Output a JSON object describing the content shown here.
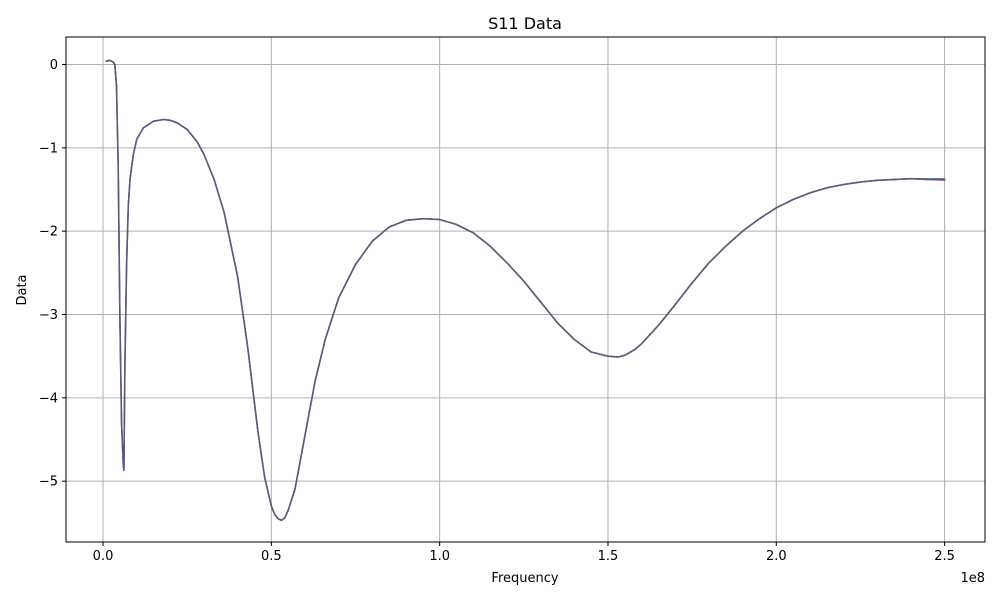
{
  "chart_data": {
    "type": "line",
    "title": "S11 Data",
    "xlabel": "Frequency",
    "ylabel": "Data",
    "x_offset_label": "1e8",
    "xlim": [
      -0.11,
      2.62
    ],
    "ylim": [
      -5.73,
      0.33
    ],
    "grid": true,
    "x_ticks": [
      0.0,
      0.5,
      1.0,
      1.5,
      2.0,
      2.5
    ],
    "x_tick_labels": [
      "0.0",
      "0.5",
      "1.0",
      "1.5",
      "2.0",
      "2.5"
    ],
    "y_ticks": [
      0,
      -1,
      -2,
      -3,
      -4,
      -5
    ],
    "y_tick_labels": [
      "0",
      "−1",
      "−2",
      "−3",
      "−4",
      "−5"
    ],
    "series": [
      {
        "color": "#c04050",
        "x": [
          0.01,
          0.02,
          0.025,
          0.03,
          0.035,
          0.04,
          0.045,
          0.05,
          0.055,
          0.06,
          0.062,
          0.065,
          0.07,
          0.075,
          0.08,
          0.09,
          0.1,
          0.12,
          0.15,
          0.18,
          0.2,
          0.22,
          0.25,
          0.28,
          0.3,
          0.33,
          0.36,
          0.4,
          0.43,
          0.46,
          0.48,
          0.5,
          0.51,
          0.52,
          0.53,
          0.54,
          0.55,
          0.57,
          0.6,
          0.63,
          0.66,
          0.7,
          0.75,
          0.8,
          0.85,
          0.9,
          0.95,
          1.0,
          1.05,
          1.1,
          1.15,
          1.2,
          1.25,
          1.3,
          1.35,
          1.4,
          1.45,
          1.5,
          1.53,
          1.55,
          1.58,
          1.6,
          1.65,
          1.7,
          1.75,
          1.8,
          1.85,
          1.9,
          1.95,
          2.0,
          2.05,
          2.1,
          2.15,
          2.2,
          2.25,
          2.3,
          2.35,
          2.4,
          2.45,
          2.5
        ],
        "y": [
          0.04,
          0.05,
          0.04,
          0.03,
          0.0,
          -0.25,
          -1.2,
          -3.0,
          -4.3,
          -4.8,
          -4.87,
          -3.6,
          -2.4,
          -1.7,
          -1.38,
          -1.08,
          -0.9,
          -0.76,
          -0.68,
          -0.66,
          -0.67,
          -0.7,
          -0.78,
          -0.93,
          -1.08,
          -1.38,
          -1.78,
          -2.55,
          -3.4,
          -4.4,
          -4.95,
          -5.3,
          -5.4,
          -5.45,
          -5.47,
          -5.44,
          -5.35,
          -5.1,
          -4.45,
          -3.8,
          -3.3,
          -2.8,
          -2.4,
          -2.12,
          -1.95,
          -1.87,
          -1.85,
          -1.86,
          -1.92,
          -2.02,
          -2.18,
          -2.38,
          -2.6,
          -2.85,
          -3.1,
          -3.3,
          -3.45,
          -3.5,
          -3.51,
          -3.49,
          -3.42,
          -3.35,
          -3.13,
          -2.88,
          -2.62,
          -2.38,
          -2.18,
          -2.0,
          -1.85,
          -1.72,
          -1.62,
          -1.54,
          -1.48,
          -1.44,
          -1.41,
          -1.39,
          -1.38,
          -1.37,
          -1.38,
          -1.39
        ]
      },
      {
        "color": "#4a6fb0",
        "x": [
          0.01,
          0.02,
          0.025,
          0.03,
          0.035,
          0.04,
          0.045,
          0.05,
          0.055,
          0.06,
          0.062,
          0.065,
          0.07,
          0.075,
          0.08,
          0.09,
          0.1,
          0.12,
          0.15,
          0.18,
          0.2,
          0.22,
          0.25,
          0.28,
          0.3,
          0.33,
          0.36,
          0.4,
          0.43,
          0.46,
          0.48,
          0.5,
          0.51,
          0.52,
          0.53,
          0.54,
          0.55,
          0.57,
          0.6,
          0.63,
          0.66,
          0.7,
          0.75,
          0.8,
          0.85,
          0.9,
          0.95,
          1.0,
          1.05,
          1.1,
          1.15,
          1.2,
          1.25,
          1.3,
          1.35,
          1.4,
          1.45,
          1.5,
          1.53,
          1.55,
          1.58,
          1.6,
          1.65,
          1.7,
          1.75,
          1.8,
          1.85,
          1.9,
          1.95,
          2.0,
          2.05,
          2.1,
          2.15,
          2.2,
          2.25,
          2.3,
          2.35,
          2.4,
          2.45,
          2.5
        ],
        "y": [
          0.04,
          0.05,
          0.04,
          0.03,
          0.0,
          -0.25,
          -1.2,
          -3.0,
          -4.3,
          -4.8,
          -4.87,
          -3.6,
          -2.4,
          -1.7,
          -1.38,
          -1.08,
          -0.9,
          -0.76,
          -0.68,
          -0.66,
          -0.67,
          -0.7,
          -0.78,
          -0.93,
          -1.08,
          -1.38,
          -1.78,
          -2.55,
          -3.4,
          -4.4,
          -4.95,
          -5.3,
          -5.4,
          -5.45,
          -5.47,
          -5.44,
          -5.35,
          -5.1,
          -4.45,
          -3.8,
          -3.3,
          -2.8,
          -2.4,
          -2.12,
          -1.95,
          -1.87,
          -1.85,
          -1.86,
          -1.92,
          -2.02,
          -2.18,
          -2.38,
          -2.6,
          -2.85,
          -3.1,
          -3.3,
          -3.45,
          -3.5,
          -3.51,
          -3.49,
          -3.42,
          -3.35,
          -3.13,
          -2.88,
          -2.62,
          -2.38,
          -2.18,
          -2.0,
          -1.85,
          -1.72,
          -1.62,
          -1.54,
          -1.48,
          -1.44,
          -1.41,
          -1.39,
          -1.38,
          -1.37,
          -1.37,
          -1.37
        ]
      },
      {
        "color": "#5a5a78",
        "x": [
          0.01,
          0.02,
          0.025,
          0.03,
          0.035,
          0.04,
          0.045,
          0.05,
          0.055,
          0.06,
          0.062,
          0.065,
          0.07,
          0.075,
          0.08,
          0.09,
          0.1,
          0.12,
          0.15,
          0.18,
          0.2,
          0.22,
          0.25,
          0.28,
          0.3,
          0.33,
          0.36,
          0.4,
          0.43,
          0.46,
          0.48,
          0.5,
          0.51,
          0.52,
          0.53,
          0.54,
          0.55,
          0.57,
          0.6,
          0.63,
          0.66,
          0.7,
          0.75,
          0.8,
          0.85,
          0.9,
          0.95,
          1.0,
          1.05,
          1.1,
          1.15,
          1.2,
          1.25,
          1.3,
          1.35,
          1.4,
          1.45,
          1.5,
          1.53,
          1.55,
          1.58,
          1.6,
          1.65,
          1.7,
          1.75,
          1.8,
          1.85,
          1.9,
          1.95,
          2.0,
          2.05,
          2.1,
          2.15,
          2.2,
          2.25,
          2.3,
          2.35,
          2.4,
          2.45,
          2.5
        ],
        "y": [
          0.04,
          0.05,
          0.04,
          0.03,
          0.0,
          -0.25,
          -1.2,
          -3.0,
          -4.3,
          -4.8,
          -4.87,
          -3.6,
          -2.4,
          -1.7,
          -1.38,
          -1.08,
          -0.9,
          -0.76,
          -0.68,
          -0.66,
          -0.67,
          -0.7,
          -0.78,
          -0.93,
          -1.08,
          -1.38,
          -1.78,
          -2.55,
          -3.4,
          -4.4,
          -4.95,
          -5.3,
          -5.4,
          -5.45,
          -5.47,
          -5.44,
          -5.35,
          -5.1,
          -4.45,
          -3.8,
          -3.3,
          -2.8,
          -2.4,
          -2.12,
          -1.95,
          -1.87,
          -1.85,
          -1.86,
          -1.92,
          -2.02,
          -2.18,
          -2.38,
          -2.6,
          -2.85,
          -3.1,
          -3.3,
          -3.45,
          -3.5,
          -3.51,
          -3.49,
          -3.42,
          -3.35,
          -3.13,
          -2.88,
          -2.62,
          -2.38,
          -2.18,
          -2.0,
          -1.85,
          -1.72,
          -1.62,
          -1.54,
          -1.48,
          -1.44,
          -1.41,
          -1.39,
          -1.38,
          -1.37,
          -1.38,
          -1.38
        ]
      }
    ]
  }
}
